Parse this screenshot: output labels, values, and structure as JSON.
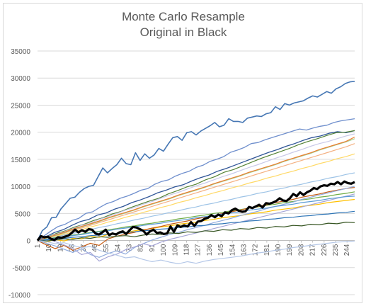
{
  "chart_data": {
    "type": "line",
    "title": "Monte Carlo Resample",
    "subtitle": "Original in Black",
    "xlabel": "",
    "ylabel": "",
    "ylim": [
      -10000,
      35000
    ],
    "yticks": [
      "35000",
      "30000",
      "25000",
      "20000",
      "15000",
      "10000",
      "5000",
      "0",
      "-5000",
      "-10000"
    ],
    "xticks": [
      "1",
      "10",
      "19",
      "28",
      "37",
      "46",
      "55",
      "64",
      "73",
      "82",
      "91",
      "100",
      "109",
      "118",
      "127",
      "136",
      "145",
      "154",
      "163",
      "172",
      "181",
      "190",
      "199",
      "208",
      "217",
      "226",
      "235",
      "244"
    ],
    "x_range": [
      1,
      250
    ],
    "grid": "horizontal",
    "legend": "none",
    "original_color": "#000000",
    "series": [
      {
        "values": [
          0,
          800,
          600,
          700,
          300,
          100,
          600,
          500,
          700,
          900,
          1400,
          2000,
          1500,
          1900,
          1600,
          2100,
          2000,
          1300,
          1100,
          1500,
          2000,
          1000,
          1300,
          1100,
          1500,
          1700,
          1200,
          1900,
          2500,
          2400,
          2100,
          1800,
          1100,
          1700,
          2000,
          1400,
          1500,
          1200,
          1300,
          2600,
          1600,
          2800,
          2500,
          2800,
          2600,
          3400,
          2700,
          3500,
          3600,
          4000,
          4200,
          4700,
          4300,
          4800,
          4500,
          5200,
          5000,
          5600,
          5900,
          5500,
          5300,
          5400,
          6200,
          6000,
          6300,
          6600,
          6100,
          6900,
          6800,
          7000,
          7300,
          7800,
          7400,
          7300,
          7800,
          8600,
          8200,
          8900,
          8400,
          8900,
          9200,
          9700,
          9500,
          10000,
          10200,
          10100,
          10500,
          10400,
          10800,
          10400,
          10900,
          10600,
          10500,
          10800
        ],
        "color": "#000000",
        "width": 3.2
      },
      {
        "values": [
          0,
          1800,
          2500,
          4200,
          4300,
          5800,
          6800,
          7800,
          8000,
          8900,
          9600,
          10000,
          10200,
          11800,
          13400,
          12500,
          13300,
          14000,
          15200,
          14200,
          14000,
          16200,
          14800,
          16000,
          15200,
          15800,
          17000,
          16500,
          17800,
          19000,
          19200,
          18500,
          19900,
          20100,
          19500,
          20200,
          20700,
          21200,
          21800,
          21000,
          21300,
          22500,
          22000,
          22000,
          21800,
          22600,
          22800,
          23000,
          22900,
          23400,
          23600,
          24700,
          24200,
          25300,
          25000,
          25400,
          25600,
          25800,
          26300,
          26700,
          26500,
          27000,
          27500,
          27200,
          28000,
          28400,
          29000,
          29300,
          29400
        ],
        "color": "#4677b4",
        "width": 1.6
      },
      {
        "values": [
          0,
          900,
          1800,
          2600,
          3000,
          3700,
          4100,
          5000,
          5300,
          6100,
          6800,
          7200,
          7800,
          8200,
          8700,
          9300,
          9600,
          10400,
          10900,
          11200,
          11900,
          12400,
          12800,
          13500,
          13900,
          14600,
          15000,
          15500,
          16300,
          16700,
          17200,
          17900,
          18100,
          18600,
          19000,
          19400,
          19800,
          20200,
          20600,
          20400,
          20800,
          21100,
          21300,
          21800,
          22100,
          22300,
          22500
        ],
        "color": "#6f8fcd",
        "width": 1.3
      },
      {
        "values": [
          0,
          700,
          1500,
          2000,
          2800,
          3500,
          3900,
          4700,
          5100,
          5800,
          6300,
          7000,
          7500,
          8100,
          8800,
          9300,
          9900,
          10300,
          11000,
          11600,
          12100,
          12800,
          13300,
          13900,
          14500,
          15100,
          15700,
          16300,
          16800,
          17400,
          17900,
          18500,
          19000,
          19300,
          19800,
          20100,
          19900,
          20300
        ],
        "color": "#2f5597",
        "width": 1.3
      },
      {
        "values": [
          0,
          600,
          1300,
          1800,
          2500,
          3000,
          3700,
          4200,
          4900,
          5400,
          6100,
          6700,
          7300,
          7800,
          8600,
          9200,
          9900,
          10400,
          11200,
          11800,
          12600,
          13100,
          13800,
          14500,
          15200,
          15800,
          16400,
          17000,
          17700,
          18300,
          18800,
          19400,
          19900,
          20000,
          20300
        ],
        "color": "#548235",
        "width": 1.2
      },
      {
        "values": [
          0,
          500,
          1100,
          1600,
          2200,
          2800,
          3200,
          3900,
          4400,
          5000,
          5600,
          6100,
          6700,
          7200,
          7800,
          8400,
          8900,
          9500,
          10100,
          10600,
          11200,
          11800,
          12300,
          12900,
          13500,
          14000,
          14600,
          15200,
          15700,
          16300,
          16800,
          17400,
          17900,
          18300,
          18800,
          19300,
          19700
        ],
        "color": "#c9c9e8",
        "width": 1.2
      },
      {
        "values": [
          0,
          400,
          900,
          1300,
          1900,
          2300,
          2800,
          3300,
          3800,
          4300,
          4800,
          5300,
          5800,
          6300,
          6800,
          7300,
          7800,
          8300,
          8800,
          9300,
          9800,
          10300,
          10800,
          11300,
          11800,
          12300,
          12800,
          13300,
          13800,
          14300,
          14800,
          15300,
          15800,
          16300,
          16800,
          17300,
          17900
        ],
        "color": "#f4b183",
        "width": 1.2
      },
      {
        "values": [
          0,
          300,
          800,
          1100,
          1600,
          2000,
          2500,
          2900,
          3400,
          3800,
          4300,
          4700,
          5200,
          5600,
          6100,
          6500,
          7000,
          7400,
          7900,
          8300,
          8800,
          9200,
          9700,
          10100,
          10600,
          11000,
          11500,
          11900,
          12400,
          12800,
          13300,
          13700,
          14200,
          14600,
          15100,
          15500,
          16000
        ],
        "color": "#ffd966",
        "width": 1.2
      },
      {
        "values": [
          0,
          300,
          600,
          1000,
          1300,
          1700,
          2000,
          2400,
          2700,
          3100,
          3400,
          3800,
          4100,
          4500,
          4800,
          5200,
          5500,
          5900,
          6200,
          6600,
          6900,
          7300,
          7600,
          8000,
          8300,
          8700,
          9000,
          9400,
          9700,
          10100,
          10400,
          10800,
          11100,
          11500,
          11800,
          12200,
          12500
        ],
        "color": "#9dc3e6",
        "width": 1.2
      },
      {
        "values": [
          0,
          200,
          500,
          700,
          1000,
          1200,
          1500,
          1700,
          2000,
          2200,
          2500,
          2700,
          3000,
          3200,
          3500,
          3700,
          4000,
          4200,
          4500,
          4700,
          5000,
          5200,
          5500,
          5700,
          6000,
          6200,
          6500,
          6700,
          7000,
          7200,
          7500,
          7700,
          8000,
          8200,
          8500,
          8700,
          9000
        ],
        "color": "#70ad47",
        "width": 1.2
      },
      {
        "values": [
          0,
          -300,
          200,
          -100,
          400,
          300,
          800,
          600,
          1100,
          1300,
          1500,
          1800,
          2000,
          2200,
          2500,
          2700,
          3000,
          3200,
          3400,
          3700,
          3900,
          4200,
          4400,
          4600,
          4900,
          5100,
          5300,
          5600,
          5800,
          6000,
          6300,
          6500,
          6700,
          7000,
          7200,
          7400,
          7600
        ],
        "color": "#ffc000",
        "width": 1.2
      },
      {
        "values": [
          0,
          -800,
          -1500,
          -900,
          -1800,
          -1200,
          -500,
          -900,
          300,
          800,
          1200,
          1500,
          1900,
          2300,
          2600,
          3000,
          3300,
          3600,
          4000,
          4300,
          4600,
          5000,
          5300,
          5600,
          6000,
          6300,
          6600,
          7000,
          7300,
          7600,
          8000,
          8300,
          8600,
          9000,
          9300,
          9600,
          9800
        ],
        "color": "#c55a11",
        "width": 1.2
      },
      {
        "values": [
          0,
          -500,
          -1000,
          -1600,
          -2200,
          -1500,
          -2600,
          -3100,
          -2400,
          -1900,
          -2500,
          -1300,
          -600,
          100,
          600,
          1100,
          1500,
          2000,
          2400,
          2800,
          3300,
          3700,
          4100,
          4600,
          5000,
          5400,
          5900,
          6300,
          6700,
          7100,
          7600,
          8000,
          8400,
          8800,
          9200,
          9600,
          10000
        ],
        "color": "#8faadc",
        "width": 1.2
      },
      {
        "values": [
          0,
          300,
          -200,
          -800,
          -1500,
          -2600,
          -2200,
          -3800,
          -3000,
          -2500,
          -1700,
          -1200,
          -600,
          -1000,
          -300,
          200,
          600,
          1000,
          1400,
          1800,
          2200,
          2600,
          3000,
          3400,
          3800,
          4200,
          4600,
          5000,
          5400,
          5800,
          6200,
          6600,
          7000,
          7400,
          7800,
          8200,
          8600
        ],
        "color": "#a5a5d6",
        "width": 1.2
      },
      {
        "values": [
          0,
          400,
          900,
          1400,
          2000,
          2500,
          3000,
          3500,
          4100,
          4600,
          5100,
          5600,
          6200,
          6700,
          7200,
          7700,
          8300,
          8800,
          9300,
          9800,
          10400,
          10900,
          11400,
          11900,
          12500,
          13000,
          13500,
          14000,
          14600,
          15100,
          15600,
          16100,
          16700,
          17200,
          17700,
          18200,
          18800
        ],
        "color": "#a9d18e",
        "width": 1.2
      },
      {
        "values": [
          0,
          500,
          1000,
          1500,
          2100,
          2600,
          3100,
          3600,
          4200,
          4700,
          5200,
          5700,
          6300,
          6800,
          7300,
          7800,
          8400,
          8900,
          9400,
          9900,
          10500,
          11000,
          11500,
          12000,
          12600,
          13100,
          13600,
          14100,
          14700,
          15200,
          15700,
          16200,
          16800,
          17300,
          17800,
          18300,
          19100
        ],
        "color": "#ed7d31",
        "width": 1.2
      },
      {
        "values": [
          0,
          200,
          400,
          700,
          900,
          1100,
          1400,
          1600,
          1800,
          2100,
          2300,
          2500,
          2800,
          3000,
          3200,
          3500,
          3700,
          3900,
          4200,
          4400,
          4600,
          4900,
          5100,
          5300,
          5600,
          5800,
          6000,
          6300,
          6500,
          6700,
          7000,
          7200,
          7400,
          7700,
          7900,
          8100,
          8200
        ],
        "color": "#5b9bd5",
        "width": 1.2
      },
      {
        "values": [
          0,
          100,
          300,
          400,
          600,
          700,
          900,
          1000,
          1200,
          1300,
          1500,
          1600,
          1800,
          1900,
          2100,
          2200,
          2400,
          2500,
          2700,
          2800,
          3000,
          3100,
          3300,
          3400,
          3600,
          3700,
          3900,
          4000,
          4200,
          4300,
          4500,
          4600,
          4800,
          4900,
          5100,
          5200,
          5400
        ],
        "color": "#2e75b6",
        "width": 1.2
      },
      {
        "values": [
          0,
          -100,
          100,
          300,
          200,
          500,
          400,
          700,
          600,
          800,
          900,
          700,
          1000,
          1200,
          1100,
          1400,
          1300,
          1600,
          1500,
          1800,
          1700,
          2000,
          1900,
          2200,
          2100,
          2400,
          2300,
          2600,
          2500,
          2800,
          2700,
          3000,
          2900,
          3200,
          3100,
          3400,
          3300
        ],
        "color": "#375623",
        "width": 1.2
      },
      {
        "values": [
          0,
          -200,
          -600,
          -400,
          -900,
          -1300,
          -1100,
          -1800,
          -2300,
          -2700,
          -3200,
          -3000,
          -3500,
          -3900,
          -3600,
          -4000,
          -4300,
          -3900,
          -4200,
          -3800,
          -3500,
          -3300,
          -3100,
          -2900,
          -2600,
          -2300,
          -2100,
          -1800,
          -1600,
          -1300,
          -1100,
          -900,
          -700,
          -500,
          -300,
          -200,
          -100
        ],
        "color": "#b4c7e7",
        "width": 1.2
      }
    ]
  }
}
